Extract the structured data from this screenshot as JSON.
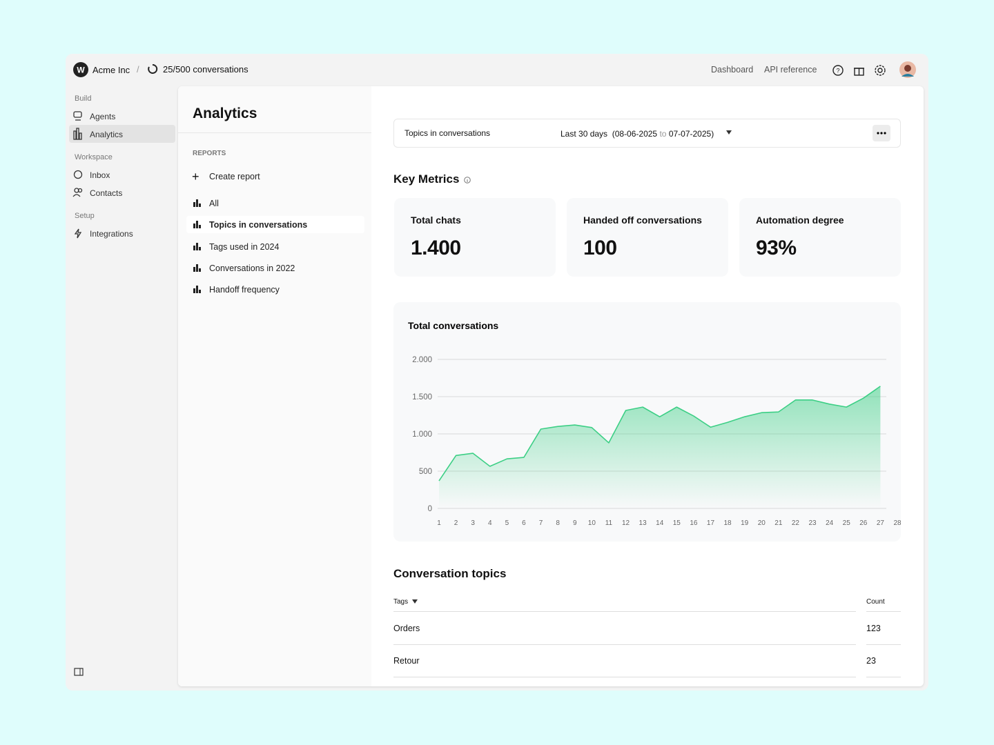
{
  "topbar": {
    "org": "Acme Inc",
    "usage": "25/500 conversations",
    "links": [
      "Dashboard",
      "API reference"
    ]
  },
  "sidebar": {
    "sections": [
      {
        "title": "Build",
        "items": [
          "Agents",
          "Analytics"
        ]
      },
      {
        "title": "Workspace",
        "items": [
          "Inbox",
          "Contacts"
        ]
      },
      {
        "title": "Setup",
        "items": [
          "Integrations"
        ]
      }
    ]
  },
  "reports": {
    "title": "Analytics",
    "heading": "REPORTS",
    "create": "Create report",
    "items": [
      "All",
      "Topics in conversations",
      "Tags used in 2024",
      "Conversations in 2022",
      "Handoff frequency"
    ]
  },
  "filter": {
    "report": "Topics in conversations",
    "range": "Last 30 days",
    "from": "(08-06-2025",
    "to_word": "to",
    "to": "07-07-2025)"
  },
  "metrics": {
    "title": "Key Metrics",
    "cards": [
      {
        "label": "Total chats",
        "value": "1.400"
      },
      {
        "label": "Handed off conversations",
        "value": "100"
      },
      {
        "label": "Automation degree",
        "value": "93%"
      }
    ]
  },
  "chart_data": {
    "type": "area",
    "title": "Total conversations",
    "x": [
      1,
      2,
      3,
      4,
      5,
      6,
      7,
      8,
      9,
      10,
      11,
      12,
      13,
      14,
      15,
      16,
      17,
      18,
      19,
      20,
      21,
      22,
      23,
      24,
      25,
      26,
      27,
      28
    ],
    "values": [
      370,
      710,
      740,
      565,
      665,
      685,
      1065,
      1100,
      1120,
      1085,
      880,
      1315,
      1360,
      1230,
      1360,
      1240,
      1090,
      1155,
      1230,
      1285,
      1295,
      1455,
      1455,
      1400,
      1360,
      1480,
      1640,
      null
    ],
    "xlim": [
      1,
      28
    ],
    "xticks": [
      1,
      2,
      3,
      4,
      5,
      6,
      7,
      8,
      9,
      10,
      11,
      12,
      13,
      14,
      15,
      16,
      17,
      18,
      19,
      20,
      21,
      22,
      23,
      24,
      25,
      26,
      27,
      28
    ],
    "ylim": [
      0,
      2000
    ],
    "yticks": [
      0,
      500,
      {
        "value": 1000,
        "label": "1.000"
      },
      {
        "value": 1500,
        "label": "1.500"
      },
      {
        "value": 2000,
        "label": "2.000"
      }
    ],
    "color": "#3ccf85",
    "grid": true
  },
  "topics": {
    "title": "Conversation topics",
    "columns": [
      "Tags",
      "Count"
    ],
    "rows": [
      [
        "Orders",
        123
      ],
      [
        "Retour",
        23
      ]
    ]
  }
}
